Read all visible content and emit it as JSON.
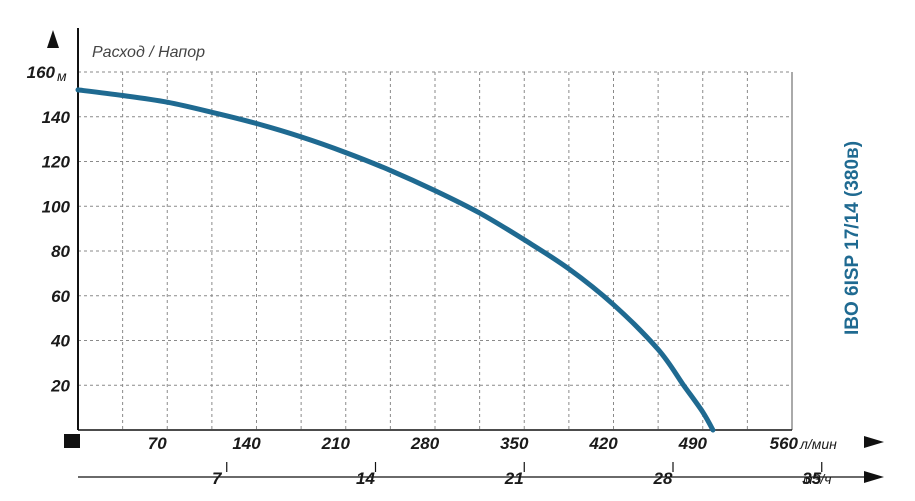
{
  "chart_data": {
    "type": "line",
    "title": "IBO 6ISP 17/14 (380в)",
    "ylabel": "Расход / Напор",
    "yunit": "м",
    "xunit_primary": "л/мин",
    "xunit_secondary": "м3/ч",
    "xlim": [
      0,
      560
    ],
    "ylim": [
      0,
      160
    ],
    "yticks": [
      20,
      40,
      60,
      80,
      100,
      120,
      140,
      160
    ],
    "xticks_primary": [
      70,
      140,
      210,
      280,
      350,
      420,
      490,
      560
    ],
    "xticks_secondary": [
      7,
      14,
      21,
      28,
      35
    ],
    "grid": true,
    "colors": {
      "curve": "#1f6a91",
      "title": "#1f6a91",
      "axis": "#111111"
    },
    "series": [
      {
        "x": [
          0,
          35,
          70,
          105,
          140,
          175,
          210,
          245,
          280,
          315,
          350,
          385,
          420,
          455,
          475,
          490,
          498
        ],
        "y": [
          152,
          149.5,
          146.5,
          142,
          137,
          131,
          124,
          116,
          107,
          97,
          85,
          72,
          56,
          36,
          20,
          8,
          0
        ]
      }
    ]
  }
}
